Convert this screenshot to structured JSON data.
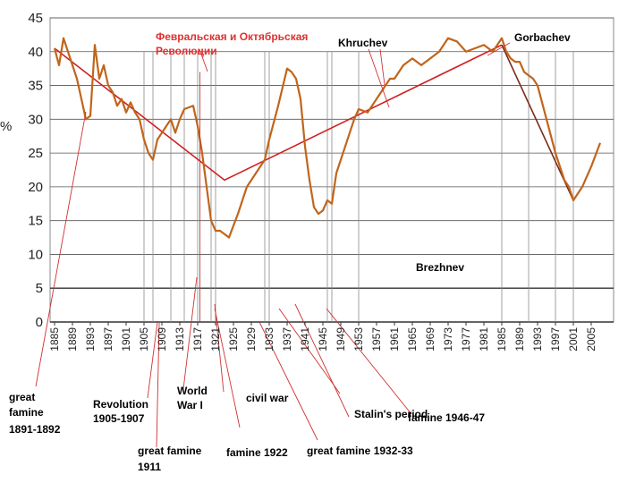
{
  "chart_data": {
    "type": "line",
    "title": "",
    "ylabel": "%",
    "xlabel": "",
    "ylim": [
      0,
      45
    ],
    "xlim": [
      1884,
      2010
    ],
    "y_ticks": [
      "0",
      "5",
      "10",
      "15",
      "20",
      "25",
      "30",
      "35",
      "40",
      "45"
    ],
    "x_ticks": [
      "1885",
      "1889",
      "1893",
      "1897",
      "1901",
      "1905",
      "1909",
      "1913",
      "1917",
      "1921",
      "1925",
      "1929",
      "1933",
      "1937",
      "1941",
      "1945",
      "1949",
      "1953",
      "1957",
      "1961",
      "1965",
      "1969",
      "1973",
      "1977",
      "1981",
      "1985",
      "1989",
      "1993",
      "1997",
      "2001",
      "2005"
    ],
    "grid": true,
    "series": [
      {
        "name": "",
        "color": "#c0651c",
        "x": [
          1885,
          1886,
          1887,
          1888,
          1890,
          1891,
          1892,
          1893,
          1894,
          1895,
          1896,
          1897,
          1898,
          1899,
          1900,
          1901,
          1902,
          1903,
          1904,
          1905,
          1906,
          1907,
          1908,
          1909,
          1910,
          1911,
          1912,
          1913,
          1914,
          1916,
          1917,
          1918,
          1919,
          1920,
          1921,
          1922,
          1923,
          1924,
          1926,
          1928,
          1930,
          1932,
          1933,
          1935,
          1937,
          1938,
          1939,
          1940,
          1941,
          1942,
          1943,
          1944,
          1945,
          1946,
          1947,
          1948,
          1950,
          1952,
          1953,
          1955,
          1957,
          1959,
          1960,
          1961,
          1963,
          1965,
          1967,
          1969,
          1971,
          1973,
          1975,
          1977,
          1979,
          1981,
          1983,
          1985,
          1986,
          1987,
          1988,
          1989,
          1990,
          1991,
          1992,
          1993,
          1995,
          1997,
          1999,
          2000,
          2001,
          2003,
          2005,
          2007
        ],
        "values": [
          40.5,
          38,
          42,
          40,
          36,
          33,
          30,
          30.5,
          41,
          36,
          38,
          35,
          34,
          32,
          33,
          31,
          32.5,
          31,
          30,
          27,
          25,
          24,
          27,
          28,
          29,
          30,
          28,
          30,
          31.5,
          32,
          29,
          25,
          20,
          15,
          13.5,
          13.5,
          13,
          12.5,
          16,
          20,
          22,
          24,
          27,
          32,
          37.5,
          37,
          36,
          33,
          26,
          21,
          17,
          16,
          16.5,
          18,
          17.5,
          22,
          26,
          30,
          31.5,
          31,
          33,
          35,
          36,
          36,
          38,
          39,
          38,
          39,
          40,
          42,
          41.5,
          40,
          40.5,
          41,
          40,
          42,
          40,
          39,
          38.5,
          38.5,
          37,
          36.5,
          36,
          35,
          30,
          25,
          21,
          20,
          18,
          20,
          23,
          26.5
        ]
      }
    ],
    "trend_line": {
      "color": "#d02020",
      "x": [
        1885,
        1923,
        1985
      ],
      "values": [
        40.5,
        21,
        41
      ]
    },
    "trend_line_2": {
      "color": "#7a2a1a",
      "x": [
        1985,
        2001
      ],
      "values": [
        41,
        18
      ]
    },
    "shaded_periods": [
      {
        "x0": 1885,
        "x1": 1921,
        "y": 40.5,
        "color": "#e8e8e8"
      },
      {
        "x0": 1925,
        "x1": 1941,
        "y": 38,
        "color": "#bdbdbd"
      },
      {
        "x0": 1945,
        "x1": 1953,
        "y": 31,
        "color": "#bdbdbd"
      },
      {
        "x0": 1953,
        "x1": 1985,
        "y": 40,
        "color": "#fdf7e2"
      },
      {
        "x0": 1985,
        "x1": 1991,
        "y": 41,
        "color": "#fbf5a8"
      },
      {
        "x0": 1991,
        "x1": 2001,
        "y": 30,
        "color": "#ebebeb"
      }
    ],
    "annotations": [
      {
        "text": "Февральская и Октябрьская",
        "color": "#e03030"
      },
      {
        "text": "Революции",
        "color": "#e03030"
      },
      {
        "text": "Khruchev",
        "color": "#000000"
      },
      {
        "text": "Gorbachev",
        "color": "#000000"
      },
      {
        "text": "Brezhnev",
        "color": "#000000"
      },
      {
        "text": "great",
        "color": "#000000"
      },
      {
        "text": "famine",
        "color": "#000000"
      },
      {
        "text": "1891-1892",
        "color": "#000000"
      },
      {
        "text": "Revolution",
        "color": "#000000"
      },
      {
        "text": "1905-1907",
        "color": "#000000"
      },
      {
        "text": "World",
        "color": "#000000"
      },
      {
        "text": "War I",
        "color": "#000000"
      },
      {
        "text": "civil war",
        "color": "#000000"
      },
      {
        "text": "Stalin's period",
        "color": "#000000"
      },
      {
        "text": "famine 1946-47",
        "color": "#000000"
      },
      {
        "text": "great famine",
        "color": "#000000"
      },
      {
        "text": "1911",
        "color": "#000000"
      },
      {
        "text": "famine 1922",
        "color": "#000000"
      },
      {
        "text": "great famine 1932-33",
        "color": "#000000"
      }
    ]
  }
}
